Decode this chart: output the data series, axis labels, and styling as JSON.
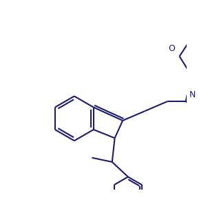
{
  "background_color": "#ffffff",
  "line_color": "#1a1a6e",
  "line_width": 1.5,
  "figsize": [
    3.02,
    3.09
  ],
  "dpi": 100,
  "atoms": {
    "N_label": "N",
    "O_label": "O",
    "N_pyr_label": "N"
  }
}
